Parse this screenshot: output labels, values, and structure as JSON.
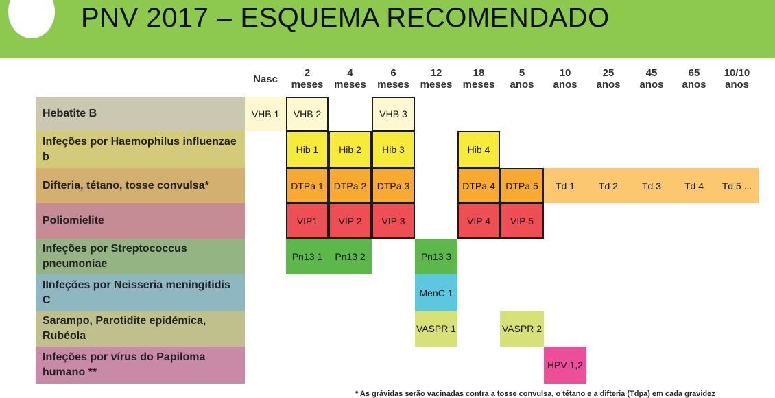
{
  "title": "PNV 2017 – ESQUEMA RECOMENDADO",
  "colors": {
    "header": "#8dc94f",
    "light_yellow": "#fdf8d0",
    "yellow": "#f6ea3a",
    "orange": "#f8a92f",
    "light_orange": "#fbc870",
    "red": "#ee4e54",
    "green": "#5cb84a",
    "cyan": "#5bc8e0",
    "lime": "#d6e277",
    "pink": "#ec4e9a"
  },
  "columns": [
    [
      "Nasc"
    ],
    [
      "2",
      "meses"
    ],
    [
      "4",
      "meses"
    ],
    [
      "6",
      "meses"
    ],
    [
      "12",
      "meses"
    ],
    [
      "18",
      "meses"
    ],
    [
      "5",
      "anos"
    ],
    [
      "10",
      "anos"
    ],
    [
      "25",
      "anos"
    ],
    [
      "45",
      "anos"
    ],
    [
      "65",
      "anos"
    ],
    [
      "10/10",
      "anos"
    ]
  ],
  "diseases": [
    {
      "label": "Hebatite B",
      "color": "#cbc8b1"
    },
    {
      "label": "Infeções por Haemophilus influenzae b",
      "color": "#d3cb7a"
    },
    {
      "label": "Difteria, tétano, tosse convulsa*",
      "color": "#d3b06f"
    },
    {
      "label": "Poliomielite",
      "color": "#c58c96"
    },
    {
      "label": "Infeções por Streptococcus pneumoniae",
      "color": "#94b583"
    },
    {
      "label": "IInfeções por Neisseria meningitidis C",
      "color": "#8eb7c2"
    },
    {
      "label": "Sarampo, Parotidite epidémica, Rubéola",
      "color": "#bfc08b"
    },
    {
      "label": "Infeções por vírus do Papiloma humano **",
      "color": "#c88aa6"
    }
  ],
  "vaccines": [
    {
      "label": "VHB 1",
      "row": 0,
      "col": 0,
      "span": 1,
      "color": "#fdf8d0",
      "border": false
    },
    {
      "label": "VHB 2",
      "row": 0,
      "col": 1,
      "span": 1,
      "color": "#fdf8d0",
      "border": true
    },
    {
      "label": "VHB 3",
      "row": 0,
      "col": 3,
      "span": 1,
      "color": "#fdf8d0",
      "border": true
    },
    {
      "label": "Hib 1",
      "row": 1,
      "col": 1,
      "span": 1,
      "color": "#f6ea3a",
      "border": true
    },
    {
      "label": "Hib 2",
      "row": 1,
      "col": 2,
      "span": 1,
      "color": "#f6ea3a",
      "border": true
    },
    {
      "label": "Hib 3",
      "row": 1,
      "col": 3,
      "span": 1,
      "color": "#f6ea3a",
      "border": true
    },
    {
      "label": "Hib 4",
      "row": 1,
      "col": 5,
      "span": 1,
      "color": "#f6ea3a",
      "border": true
    },
    {
      "label": "DTPa 1",
      "row": 2,
      "col": 1,
      "span": 1,
      "color": "#f8a92f",
      "border": true
    },
    {
      "label": "DTPa 2",
      "row": 2,
      "col": 2,
      "span": 1,
      "color": "#f8a92f",
      "border": true
    },
    {
      "label": "DTPa 3",
      "row": 2,
      "col": 3,
      "span": 1,
      "color": "#f8a92f",
      "border": true
    },
    {
      "label": "DTPa 4",
      "row": 2,
      "col": 5,
      "span": 1,
      "color": "#f8a92f",
      "border": true
    },
    {
      "label": "DTPa 5",
      "row": 2,
      "col": 6,
      "span": 1,
      "color": "#f8a92f",
      "border": true
    },
    {
      "label": "Td 1",
      "row": 2,
      "col": 7,
      "span": 1,
      "color": "#fbc870",
      "border": false
    },
    {
      "label": "Td 2",
      "row": 2,
      "col": 8,
      "span": 1,
      "color": "#fbc870",
      "border": false
    },
    {
      "label": "Td 3",
      "row": 2,
      "col": 9,
      "span": 1,
      "color": "#fbc870",
      "border": false
    },
    {
      "label": "Td 4",
      "row": 2,
      "col": 10,
      "span": 1,
      "color": "#fbc870",
      "border": false
    },
    {
      "label": "Td 5 ...",
      "row": 2,
      "col": 11,
      "span": 1,
      "color": "#fbc870",
      "border": false
    },
    {
      "label": "VIP1",
      "row": 3,
      "col": 1,
      "span": 1,
      "color": "#ee4e54",
      "border": true
    },
    {
      "label": "VIP 2",
      "row": 3,
      "col": 2,
      "span": 1,
      "color": "#ee4e54",
      "border": true
    },
    {
      "label": "VIP 3",
      "row": 3,
      "col": 3,
      "span": 1,
      "color": "#ee4e54",
      "border": true
    },
    {
      "label": "VIP 4",
      "row": 3,
      "col": 5,
      "span": 1,
      "color": "#ee4e54",
      "border": true
    },
    {
      "label": "VIP 5",
      "row": 3,
      "col": 6,
      "span": 1,
      "color": "#ee4e54",
      "border": true
    },
    {
      "label": "Pn13 1",
      "row": 4,
      "col": 1,
      "span": 1,
      "color": "#5cb84a",
      "border": false
    },
    {
      "label": "Pn13 2",
      "row": 4,
      "col": 2,
      "span": 1,
      "color": "#5cb84a",
      "border": false
    },
    {
      "label": "Pn13 3",
      "row": 4,
      "col": 4,
      "span": 1,
      "color": "#5cb84a",
      "border": false
    },
    {
      "label": "MenC 1",
      "row": 5,
      "col": 4,
      "span": 1,
      "color": "#5bc8e0",
      "border": false
    },
    {
      "label": "VASPR 1",
      "row": 6,
      "col": 4,
      "span": 1,
      "color": "#d6e277",
      "border": false
    },
    {
      "label": "VASPR 2",
      "row": 6,
      "col": 6,
      "span": 1,
      "color": "#d6e277",
      "border": false
    },
    {
      "label": "HPV 1,2",
      "row": 7,
      "col": 7,
      "span": 1,
      "color": "#ec4e9a",
      "border": false
    }
  ],
  "footnote": "* As grávidas serão vacinadas contra a tosse convulsa, o tétano e a difteria (Tdpa) em cada gravidez"
}
